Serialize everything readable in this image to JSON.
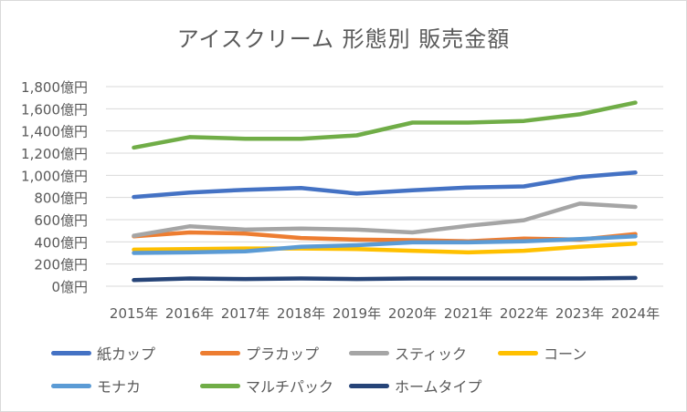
{
  "chart_data": {
    "type": "line",
    "title": "アイスクリーム 形態別 販売金額",
    "xlabel": "",
    "ylabel": "",
    "categories": [
      "2015年",
      "2016年",
      "2017年",
      "2018年",
      "2019年",
      "2020年",
      "2021年",
      "2022年",
      "2023年",
      "2024年"
    ],
    "ylim": [
      0,
      1800
    ],
    "yticks": [
      {
        "value": 0,
        "label": "0億円"
      },
      {
        "value": 200,
        "label": "200億円"
      },
      {
        "value": 400,
        "label": "400億円"
      },
      {
        "value": 600,
        "label": "600億円"
      },
      {
        "value": 800,
        "label": "800億円"
      },
      {
        "value": 1000,
        "label": "1,000億円"
      },
      {
        "value": 1200,
        "label": "1,200億円"
      },
      {
        "value": 1400,
        "label": "1,400億円"
      },
      {
        "value": 1600,
        "label": "1,600億円"
      },
      {
        "value": 1800,
        "label": "1,800億円"
      }
    ],
    "grid": true,
    "legend_position": "bottom",
    "series": [
      {
        "name": "紙カップ",
        "color": "#4472C4",
        "values": [
          805,
          845,
          870,
          885,
          835,
          865,
          890,
          900,
          985,
          1025
        ]
      },
      {
        "name": "プラカップ",
        "color": "#ED7D31",
        "values": [
          450,
          485,
          475,
          435,
          420,
          415,
          405,
          430,
          420,
          470
        ]
      },
      {
        "name": "スティック",
        "color": "#A5A5A5",
        "values": [
          455,
          540,
          510,
          520,
          510,
          485,
          545,
          595,
          745,
          715
        ]
      },
      {
        "name": "コーン",
        "color": "#FFC000",
        "values": [
          330,
          335,
          340,
          340,
          335,
          320,
          305,
          320,
          355,
          385
        ]
      },
      {
        "name": "モナカ",
        "color": "#5B9BD5",
        "values": [
          300,
          305,
          315,
          355,
          370,
          395,
          395,
          405,
          425,
          450
        ]
      },
      {
        "name": "マルチパック",
        "color": "#70AD47",
        "values": [
          1250,
          1345,
          1330,
          1330,
          1360,
          1475,
          1475,
          1490,
          1550,
          1655
        ]
      },
      {
        "name": "ホームタイプ",
        "color": "#264478",
        "values": [
          55,
          70,
          65,
          70,
          65,
          70,
          70,
          70,
          70,
          75
        ]
      }
    ]
  }
}
